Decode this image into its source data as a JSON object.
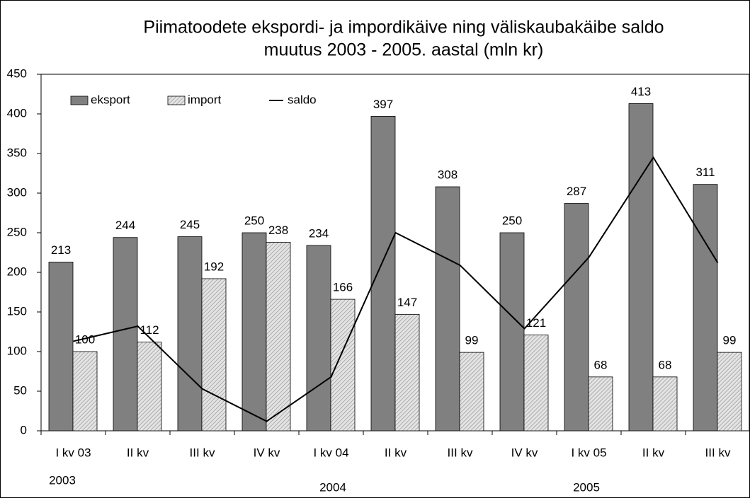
{
  "chart_data": {
    "type": "bar_line",
    "title_lines": [
      "Piimatoodete ekspordi- ja impordikäive ning väliskaubakäibe saldo",
      "muutus 2003 - 2005. aastal (mln kr)"
    ],
    "categories": [
      "I kv 03",
      "II kv",
      "III kv",
      "IV kv",
      "I kv 04",
      "II kv",
      "III kv",
      "IV kv",
      "I kv 05",
      "II kv",
      "III kv"
    ],
    "year_labels": [
      "2003",
      "2004",
      "2005"
    ],
    "series": [
      {
        "name": "eksport",
        "kind": "bar",
        "color": "#808080",
        "values": [
          213,
          244,
          245,
          250,
          234,
          397,
          308,
          250,
          287,
          413,
          311
        ]
      },
      {
        "name": "import",
        "kind": "bar",
        "color": "#d0d0d0",
        "pattern": "hatch",
        "values": [
          100,
          112,
          192,
          238,
          166,
          147,
          99,
          121,
          68,
          68,
          99
        ]
      },
      {
        "name": "saldo",
        "kind": "line",
        "color": "#000000",
        "values": [
          113,
          132,
          53,
          12,
          68,
          250,
          209,
          129,
          219,
          345,
          212
        ]
      }
    ],
    "ylim": [
      0,
      450
    ],
    "yticks": [
      0,
      50,
      100,
      150,
      200,
      250,
      300,
      350,
      400,
      450
    ],
    "grid": false
  }
}
